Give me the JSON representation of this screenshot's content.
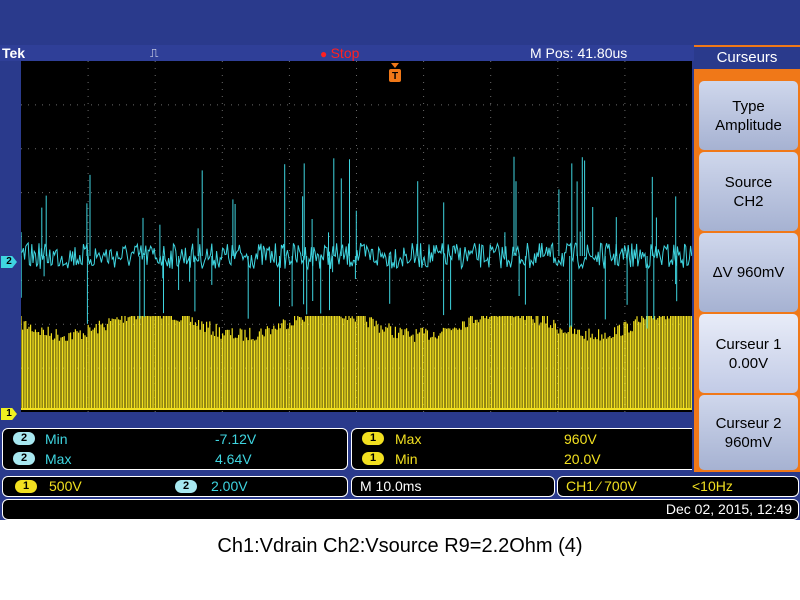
{
  "header": {
    "brand": "Tek",
    "trigger_icon": "⎍",
    "run_state": "Stop",
    "m_pos": "M Pos: 41.80us"
  },
  "markers": {
    "ch1": "1",
    "ch2": "2",
    "trigger": "T"
  },
  "side_menu": {
    "title": "Curseurs",
    "buttons": [
      {
        "line1": "Type",
        "line2": "Amplitude"
      },
      {
        "line1": "Source",
        "line2": "CH2"
      },
      {
        "line1": "ΔV 960mV",
        "line2": ""
      },
      {
        "line1": "Curseur 1",
        "line2": "0.00V"
      },
      {
        "line1": "Curseur 2",
        "line2": "960mV"
      }
    ]
  },
  "measurements": {
    "left": [
      {
        "channel": "2",
        "label": "Min",
        "value": "-7.12V"
      },
      {
        "channel": "2",
        "label": "Max",
        "value": "4.64V"
      }
    ],
    "right": [
      {
        "channel": "1",
        "label": "Max",
        "value": "960V"
      },
      {
        "channel": "1",
        "label": "Min",
        "value": "20.0V"
      }
    ]
  },
  "status": {
    "ch1_badge": "1",
    "ch1_scale": "500V",
    "ch2_badge": "2",
    "ch2_scale": "2.00V",
    "timebase": "M 10.0ms",
    "trigger": "CH1 ⁄ 700V",
    "freq": "<10Hz",
    "datetime": "Dec 02, 2015, 12:49"
  },
  "caption": "Ch1:Vdrain Ch2:Vsource R9=2.2Ohm (4)",
  "colors": {
    "ch1": "#f2e020",
    "ch2": "#3fd5e0",
    "menu": "#f07818",
    "frame": "#2a3a8c"
  }
}
